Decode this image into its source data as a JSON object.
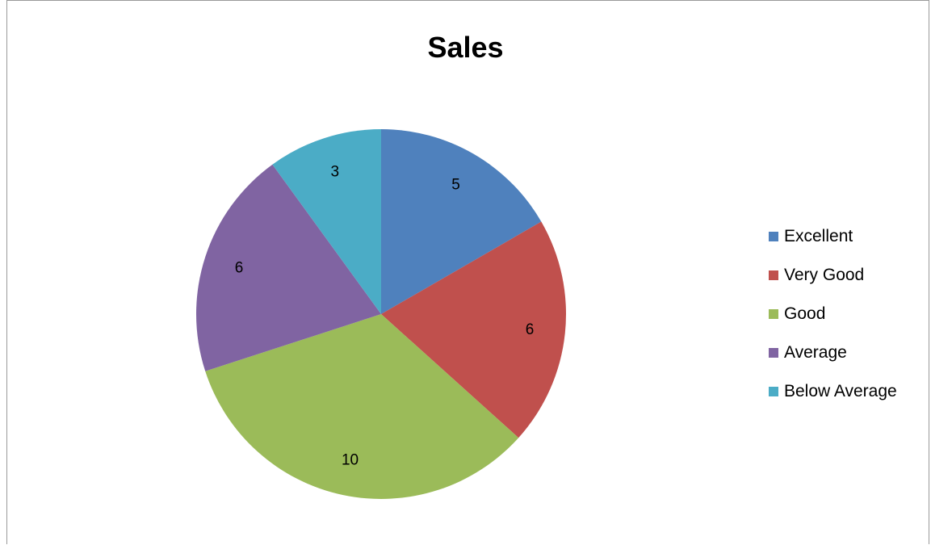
{
  "chart_data": {
    "type": "pie",
    "title": "Sales",
    "categories": [
      "Excellent",
      "Very Good",
      "Good",
      "Average",
      "Below Average"
    ],
    "values": [
      5,
      6,
      10,
      6,
      3
    ],
    "colors": [
      "#4F81BD",
      "#C0504D",
      "#9BBB59",
      "#8064A2",
      "#4BACC6"
    ],
    "data_labels": [
      "5",
      "6",
      "10",
      "6",
      "3"
    ],
    "start_angle": "top",
    "direction": "clockwise",
    "legend": "right"
  }
}
